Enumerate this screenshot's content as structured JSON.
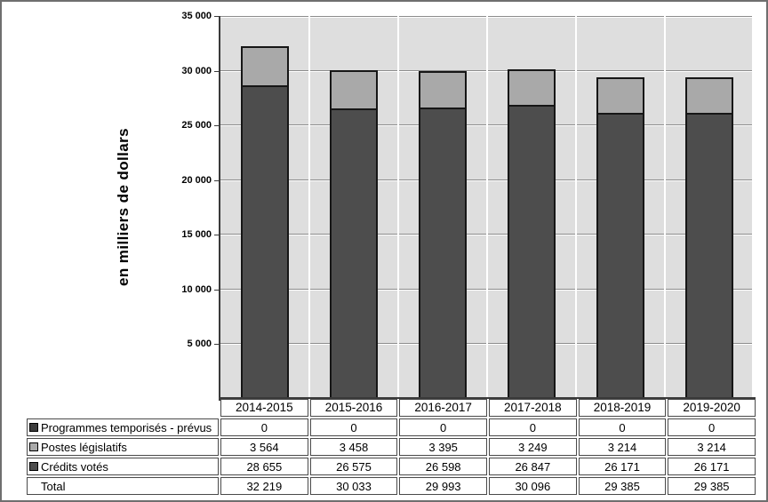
{
  "chart_data": {
    "type": "bar",
    "stacked": true,
    "title": "",
    "ylabel": "en milliers de dollars",
    "xlabel": "",
    "ylim": [
      0,
      35000
    ],
    "ytick_interval": 5000,
    "ytick_labels": [
      "5 000",
      "10 000",
      "15 000",
      "20 000",
      "25 000",
      "30 000",
      "35 000"
    ],
    "grid": true,
    "legend_position": "table-below",
    "categories": [
      "2014-2015",
      "2015-2016",
      "2016-2017",
      "2017-2018",
      "2018-2019",
      "2019-2020"
    ],
    "series": [
      {
        "name": "Programmes temporisés - prévus",
        "color": "#3c3c3c",
        "values": [
          0,
          0,
          0,
          0,
          0,
          0
        ]
      },
      {
        "name": "Postes législatifs",
        "color": "#a9a9a9",
        "values": [
          3564,
          3458,
          3395,
          3249,
          3214,
          3214
        ]
      },
      {
        "name": "Crédits votés",
        "color": "#4d4d4d",
        "values": [
          28655,
          26575,
          26598,
          26847,
          26171,
          26171
        ]
      }
    ],
    "totals": [
      32219,
      30033,
      29993,
      30096,
      29385,
      29385
    ]
  },
  "colors": {
    "plot_background": "#dedede",
    "gridline": "#8c8c8c",
    "gridline_highlight": "#ffffff",
    "axis": "#3a3a3a",
    "bar_border": "#161616",
    "table_border": "#4a4a4a",
    "page_border": "#6f6f6f"
  },
  "table": {
    "header": [
      "2014-2015",
      "2015-2016",
      "2016-2017",
      "2017-2018",
      "2018-2019",
      "2019-2020"
    ],
    "rows": [
      {
        "label": "Programmes temporisés - prévus",
        "marker_color": "#3c3c3c",
        "values": [
          "0",
          "0",
          "0",
          "0",
          "0",
          "0"
        ]
      },
      {
        "label": "Postes législatifs",
        "marker_color": "#a9a9a9",
        "values": [
          "3 564",
          "3 458",
          "3 395",
          "3 249",
          "3 214",
          "3 214"
        ]
      },
      {
        "label": "Crédits votés",
        "marker_color": "#4d4d4d",
        "values": [
          "28 655",
          "26 575",
          "26 598",
          "26 847",
          "26 171",
          "26 171"
        ]
      },
      {
        "label": "Total",
        "marker_color": null,
        "values": [
          "32 219",
          "30 033",
          "29 993",
          "30 096",
          "29 385",
          "29 385"
        ]
      }
    ]
  }
}
